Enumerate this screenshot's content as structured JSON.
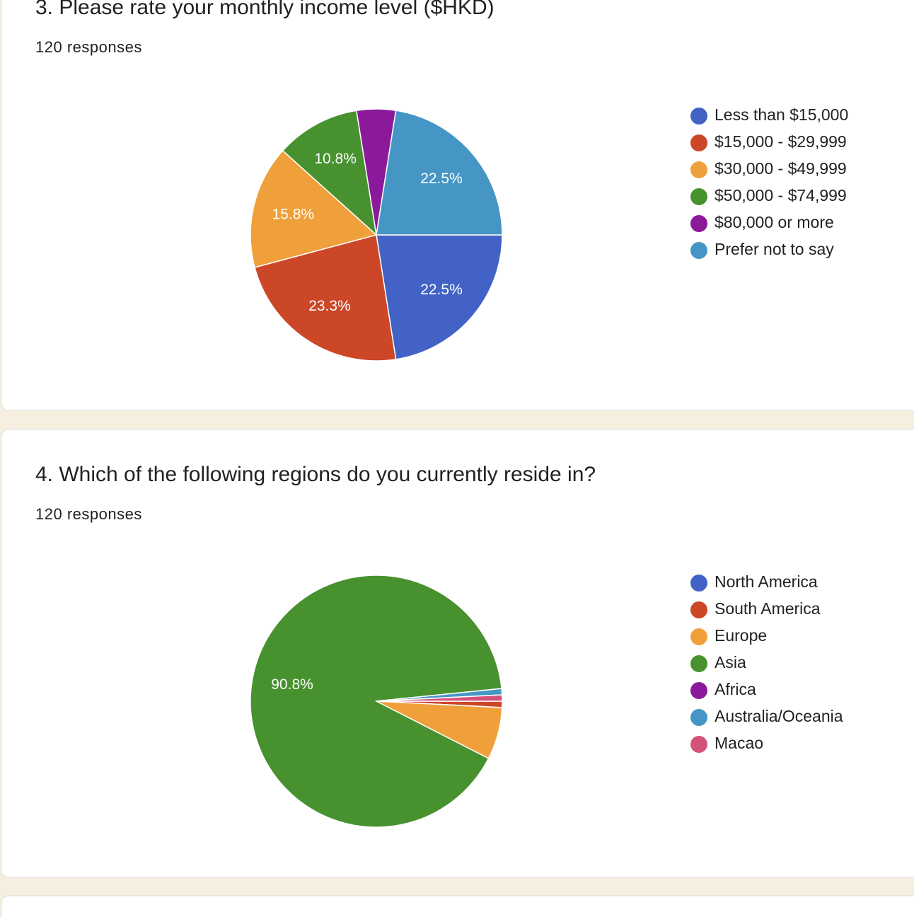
{
  "chart_data": [
    {
      "type": "pie",
      "title": "3. Please rate your monthly income level ($HKD)",
      "subtitle": "120 responses",
      "categories": [
        "Less than $15,000",
        "$15,000 - $29,999",
        "$30,000 - $49,999",
        "$50,000 - $74,999",
        "$80,000 or more",
        "Prefer not to say"
      ],
      "values": [
        22.5,
        23.3,
        15.8,
        10.8,
        5.0,
        22.5
      ],
      "value_labels": [
        "22.5%",
        "23.3%",
        "15.8%",
        "10.8%",
        null,
        "22.5%"
      ],
      "colors": [
        "#4263c5",
        "#cc4628",
        "#f0a03a",
        "#47922f",
        "#8b1a9a",
        "#4596c5"
      ]
    },
    {
      "type": "pie",
      "title": "4. Which of the following regions do you currently reside in?",
      "subtitle": "120 responses",
      "categories": [
        "North America",
        "South America",
        "Europe",
        "Asia",
        "Africa",
        "Australia/Oceania",
        "Macao"
      ],
      "values": [
        0,
        0.8,
        6.7,
        90.8,
        0,
        0.8,
        0.8
      ],
      "value_labels": [
        null,
        null,
        null,
        "90.8%",
        null,
        null,
        null
      ],
      "colors": [
        "#4263c5",
        "#cc4628",
        "#f0a03a",
        "#47922f",
        "#8b1a9a",
        "#4596c5",
        "#d35279"
      ]
    }
  ]
}
